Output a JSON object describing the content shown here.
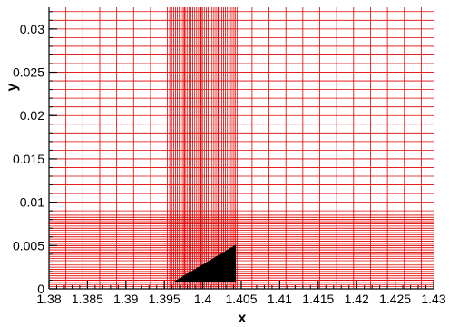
{
  "chart_data": {
    "type": "mesh",
    "title": "",
    "xlabel": "x",
    "ylabel": "y",
    "xlim": [
      1.38,
      1.43
    ],
    "ylim": [
      0,
      0.0325
    ],
    "x_ticks": [
      1.38,
      1.385,
      1.39,
      1.395,
      1.4,
      1.405,
      1.41,
      1.415,
      1.42,
      1.425,
      1.43
    ],
    "x_tick_labels": [
      "1.38",
      "1.385",
      "1.39",
      "1.395",
      "1.4",
      "1.405",
      "1.41",
      "1.415",
      "1.42",
      "1.425",
      "1.43"
    ],
    "y_ticks": [
      0,
      0.005,
      0.01,
      0.015,
      0.02,
      0.025,
      0.03
    ],
    "y_tick_labels": [
      "0",
      "0.005",
      "0.01",
      "0.015",
      "0.02",
      "0.025",
      "0.03"
    ],
    "grid": {
      "color": "#e00000",
      "refined_x_range": [
        1.3957,
        1.4045
      ],
      "refined_y_range": [
        0,
        0.0088
      ],
      "coarse_x_spacing": 0.0022,
      "fine_x_spacing": 0.00025,
      "coarse_y_spacing": 0.001,
      "fine_y_spacing": 0.00025
    },
    "body": {
      "name": "wedge",
      "color": "#000000",
      "vertices": [
        [
          1.3961,
          0.00075
        ],
        [
          1.4043,
          0.0051
        ],
        [
          1.4043,
          0.00075
        ]
      ]
    }
  }
}
